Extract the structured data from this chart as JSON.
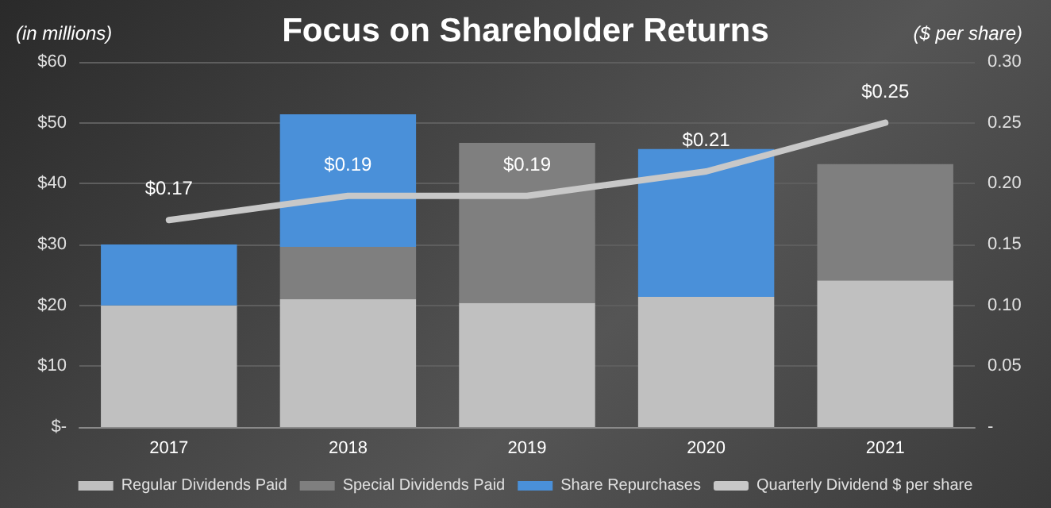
{
  "chart_data": {
    "type": "bar",
    "title": "Focus on Shareholder Returns",
    "ylabel": "(in millions)",
    "y2label": "($ per share)",
    "stacked": true,
    "categories": [
      "2017",
      "2018",
      "2019",
      "2020",
      "2021"
    ],
    "series": [
      {
        "name": "Regular Dividends Paid",
        "color": "#c0c0c0",
        "values": [
          20,
          21,
          20.4,
          21.4,
          24.1
        ]
      },
      {
        "name": "Special Dividends Paid",
        "color": "#7f7f7f",
        "values": [
          0,
          8.6,
          26.3,
          0,
          19.1
        ]
      },
      {
        "name": "Share Repurchases",
        "color": "#4a90d9",
        "values": [
          10,
          21.8,
          0,
          24.3,
          0
        ]
      },
      {
        "name": "Quarterly Dividend $ per share",
        "type": "line",
        "axis": "y2",
        "color": "#c8c8c8",
        "marker": "none",
        "values": [
          0.17,
          0.19,
          0.19,
          0.21,
          0.25
        ],
        "value_labels": [
          "$0.17",
          "$0.19",
          "$0.19",
          "$0.21",
          "$0.25"
        ]
      }
    ],
    "ylim": [
      0,
      60
    ],
    "yticks": [
      {
        "value": 0,
        "label": "$-"
      },
      {
        "value": 10,
        "label": "$10"
      },
      {
        "value": 20,
        "label": "$20"
      },
      {
        "value": 30,
        "label": "$30"
      },
      {
        "value": 40,
        "label": "$40"
      },
      {
        "value": 50,
        "label": "$50"
      },
      {
        "value": 60,
        "label": "$60"
      }
    ],
    "y2lim": [
      0,
      0.3
    ],
    "y2ticks": [
      {
        "value": 0,
        "label": "-"
      },
      {
        "value": 0.05,
        "label": "0.05"
      },
      {
        "value": 0.1,
        "label": "0.10"
      },
      {
        "value": 0.15,
        "label": "0.15"
      },
      {
        "value": 0.2,
        "label": "0.20"
      },
      {
        "value": 0.25,
        "label": "0.25"
      },
      {
        "value": 0.3,
        "label": "0.30"
      }
    ],
    "grid": "y",
    "legend": "bottom"
  }
}
